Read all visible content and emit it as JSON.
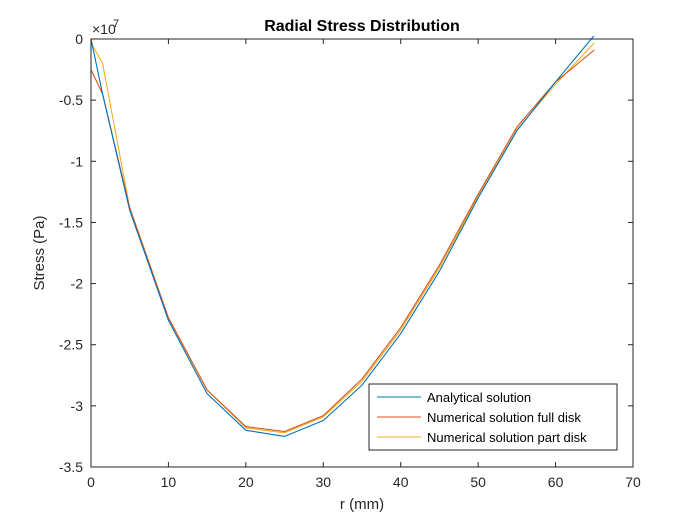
{
  "chart_data": {
    "type": "line",
    "title": "Radial Stress Distribution",
    "xlabel": "r (mm)",
    "ylabel": "Stress (Pa)",
    "exponent_label": "×10",
    "exponent_power": "7",
    "xlim": [
      0,
      70
    ],
    "ylim": [
      -3.5,
      0
    ],
    "y_scale": 10000000,
    "xticks": [
      0,
      10,
      20,
      30,
      40,
      50,
      60,
      70
    ],
    "xtick_labels": [
      "0",
      "10",
      "20",
      "30",
      "40",
      "50",
      "60",
      "70"
    ],
    "yticks": [
      0,
      -0.5,
      -1,
      -1.5,
      -2,
      -2.5,
      -3,
      -3.5
    ],
    "ytick_labels": [
      "0",
      "-0.5",
      "-1",
      "-1.5",
      "-2",
      "-2.5",
      "-3",
      "-3.5"
    ],
    "grid": false,
    "legend_position": "bottom-right",
    "series": [
      {
        "name": "Analytical solution",
        "color": "#0072BD",
        "x": [
          0,
          1.5,
          5,
          10,
          15,
          20,
          25,
          30,
          35,
          40,
          45,
          50,
          55,
          60,
          65
        ],
        "y": [
          0,
          -0.45,
          -1.4,
          -2.3,
          -2.9,
          -3.2,
          -3.25,
          -3.12,
          -2.83,
          -2.41,
          -1.9,
          -1.3,
          -0.75,
          -0.35,
          0.03
        ]
      },
      {
        "name": "Numerical solution full disk",
        "color": "#D95319",
        "x": [
          0,
          1.5,
          5,
          10,
          15,
          20,
          25,
          30,
          35,
          40,
          45,
          50,
          55,
          60,
          65
        ],
        "y": [
          -0.25,
          -0.45,
          -1.38,
          -2.28,
          -2.87,
          -3.17,
          -3.21,
          -3.08,
          -2.78,
          -2.36,
          -1.85,
          -1.27,
          -0.72,
          -0.35,
          -0.09
        ]
      },
      {
        "name": "Numerical solution part disk",
        "color": "#EDB120",
        "x": [
          0,
          1.5,
          5,
          10,
          15,
          20,
          25,
          30,
          35,
          40,
          45,
          50,
          55,
          60,
          65
        ],
        "y": [
          -0.03,
          -0.2,
          -1.38,
          -2.28,
          -2.87,
          -3.18,
          -3.22,
          -3.09,
          -2.8,
          -2.38,
          -1.87,
          -1.29,
          -0.74,
          -0.37,
          -0.03
        ]
      }
    ]
  }
}
